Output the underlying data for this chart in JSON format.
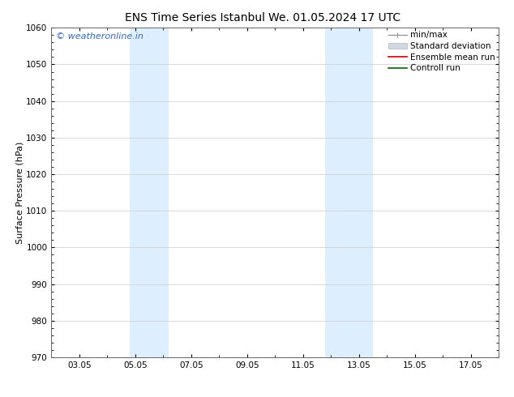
{
  "title_left": "ENS Time Series Istanbul",
  "title_right": "We. 01.05.2024 17 UTC",
  "ylabel": "Surface Pressure (hPa)",
  "xlabel": "",
  "ylim": [
    970,
    1060
  ],
  "yticks": [
    970,
    980,
    990,
    1000,
    1010,
    1020,
    1030,
    1040,
    1050,
    1060
  ],
  "xtick_labels": [
    "03.05",
    "05.05",
    "07.05",
    "09.05",
    "11.05",
    "13.05",
    "15.05",
    "17.05"
  ],
  "xtick_positions": [
    2,
    4,
    6,
    8,
    10,
    12,
    14,
    16
  ],
  "xlim": [
    1,
    17
  ],
  "shaded_bands": [
    {
      "xmin": 3.8,
      "xmax": 5.2,
      "color": "#ddeeff"
    },
    {
      "xmin": 10.8,
      "xmax": 12.5,
      "color": "#ddeeff"
    }
  ],
  "background_color": "#ffffff",
  "plot_bg_color": "#ffffff",
  "watermark_text": "© weatheronline.in",
  "watermark_color": "#3366cc",
  "watermark_fontsize": 8,
  "title_fontsize": 10,
  "tick_fontsize": 7.5,
  "ylabel_fontsize": 8,
  "grid_color": "#cccccc",
  "grid_lw": 0.5,
  "spine_color": "#666666",
  "legend_fontsize": 7.5
}
